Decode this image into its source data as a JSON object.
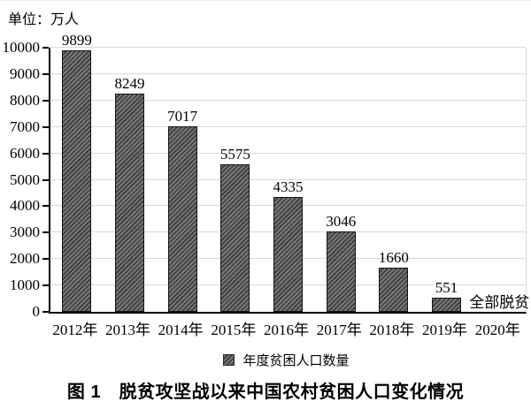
{
  "page": {
    "background": "#ffffff"
  },
  "chart_data": {
    "type": "bar",
    "title": "图 1　脱贫攻坚战以来中国农村贫困人口变化情况",
    "unit_label": "单位：万人",
    "categories": [
      "2012年",
      "2013年",
      "2014年",
      "2015年",
      "2016年",
      "2017年",
      "2018年",
      "2019年",
      "2020年"
    ],
    "values": [
      9899,
      8249,
      7017,
      5575,
      4335,
      3046,
      1660,
      551,
      null
    ],
    "value_labels": [
      "9899",
      "8249",
      "7017",
      "5575",
      "4335",
      "3046",
      "1660",
      "551",
      null
    ],
    "no_bar_annotation": {
      "category": "2020年",
      "text": "全部脱贫"
    },
    "legend": {
      "label": "年度贫困人口数量",
      "position": "bottom-center",
      "marker": "hatched-square-icon"
    },
    "ylim": [
      0,
      10000
    ],
    "ytick_interval": 1000,
    "ytick_labels": [
      "0",
      "1000",
      "2000",
      "3000",
      "4000",
      "5000",
      "6000",
      "7000",
      "8000",
      "9000",
      "10000"
    ],
    "grid": true,
    "styles": {
      "bar_base_color": "#777777",
      "bar_stripe_color": "#3d3d3d",
      "bar_border_color": "#141414",
      "grid_color": "#d9d9d9",
      "axis_color": "#000000",
      "hatch": "diagonal-forward"
    }
  }
}
